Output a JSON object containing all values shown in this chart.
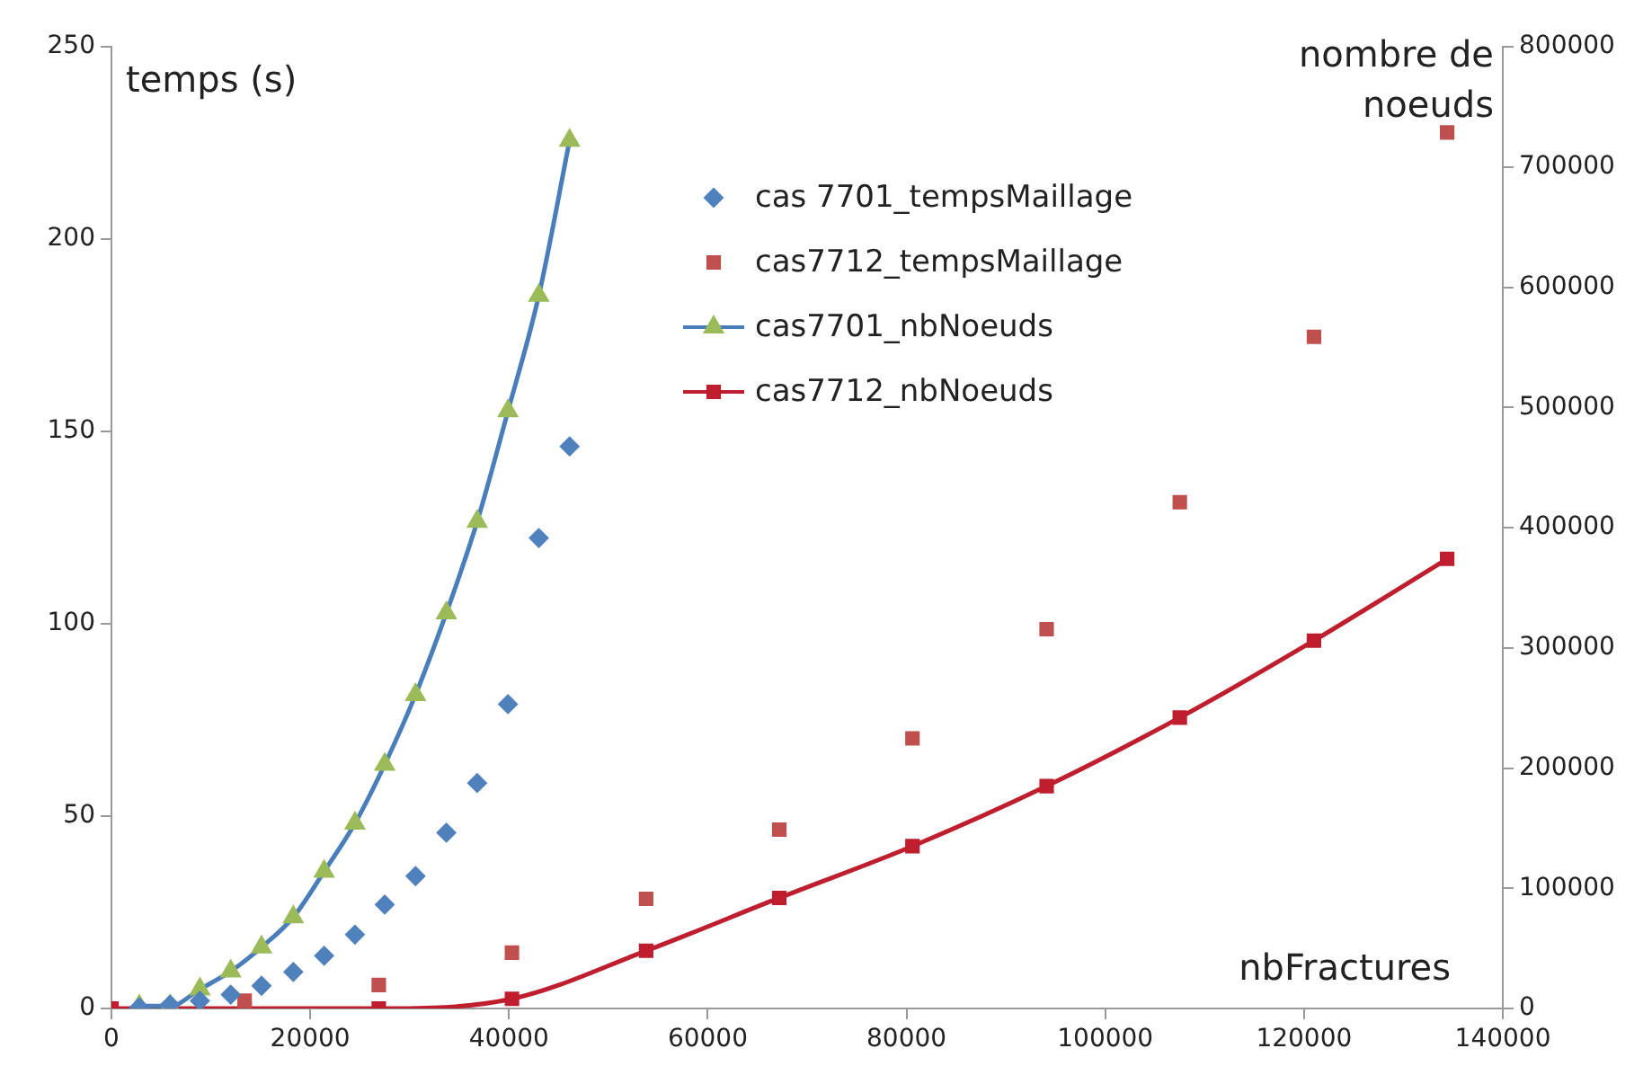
{
  "chart_data": {
    "type": "scatter",
    "ylabel": "temps (s)",
    "y2label": "nombre de noeuds",
    "xlabel": "nbFractures",
    "xlim": [
      0,
      140000
    ],
    "xticks": [
      0,
      20000,
      40000,
      60000,
      80000,
      100000,
      120000,
      140000
    ],
    "ylim": [
      0,
      250
    ],
    "yticks": [
      0,
      50,
      100,
      150,
      200,
      250
    ],
    "y2lim": [
      0,
      800000
    ],
    "y2ticks": [
      0,
      100000,
      200000,
      300000,
      400000,
      500000,
      600000,
      700000,
      800000
    ],
    "grid": false,
    "legend": "top",
    "series": [
      {
        "name": "cas 7701_tempsMaillage",
        "type": "scatter",
        "marker": "diamond",
        "color": "#4f81bd",
        "x": [
          2800,
          5900,
          8900,
          12000,
          15100,
          18300,
          21400,
          24500,
          27500,
          30600,
          33700,
          36800,
          39900,
          43000,
          46100
        ],
        "values": [
          0.3,
          1,
          2,
          3.6,
          5.9,
          9.5,
          13.7,
          19.2,
          27,
          34.4,
          45.7,
          58.6,
          79.1,
          122.3,
          146.1
        ]
      },
      {
        "name": "cas7712_tempsMaillage",
        "type": "scatter",
        "marker": "square",
        "color": "#c0504d",
        "x": [
          13400,
          26900,
          40300,
          53800,
          67200,
          80600,
          94100,
          107500,
          121000,
          134400
        ],
        "values": [
          2,
          6.1,
          14.5,
          28.5,
          46.5,
          70.2,
          98.6,
          131.6,
          174.6,
          227.7
        ]
      },
      {
        "name": "cas7701_nbNoeuds",
        "type": "line",
        "axis": "y2",
        "marker": "triangle",
        "color": "#4a7ebb",
        "colors": [
          "#9bbb59",
          "#9bbb59",
          "#9bbb59",
          "#9bbb59",
          "#9bbb59",
          "#9bbb59",
          "#9bbb59",
          "#9bbb59",
          "#9bbb59",
          "#9bbb59",
          "#9bbb59",
          "#9bbb59",
          "#9bbb59",
          "#9bbb59",
          "#9bbb59"
        ],
        "x": [
          2800,
          5900,
          8900,
          12000,
          15100,
          18300,
          21400,
          24500,
          27500,
          30600,
          33700,
          36800,
          39900,
          43000,
          46100
        ],
        "values": [
          2000,
          2000,
          16000,
          31000,
          51000,
          76000,
          114000,
          154000,
          203000,
          261000,
          329000,
          405000,
          497000,
          593000,
          722000
        ]
      },
      {
        "name": "cas7712_nbNoeuds",
        "type": "line",
        "axis": "y2",
        "marker": "square",
        "color": "#be1e2d",
        "x": [
          0,
          13400,
          26900,
          40300,
          53800,
          67200,
          80600,
          94100,
          107500,
          121000,
          134400
        ],
        "values": [
          0,
          0,
          0,
          8000,
          48000,
          92000,
          135000,
          185000,
          242000,
          306000,
          374000
        ]
      }
    ]
  }
}
